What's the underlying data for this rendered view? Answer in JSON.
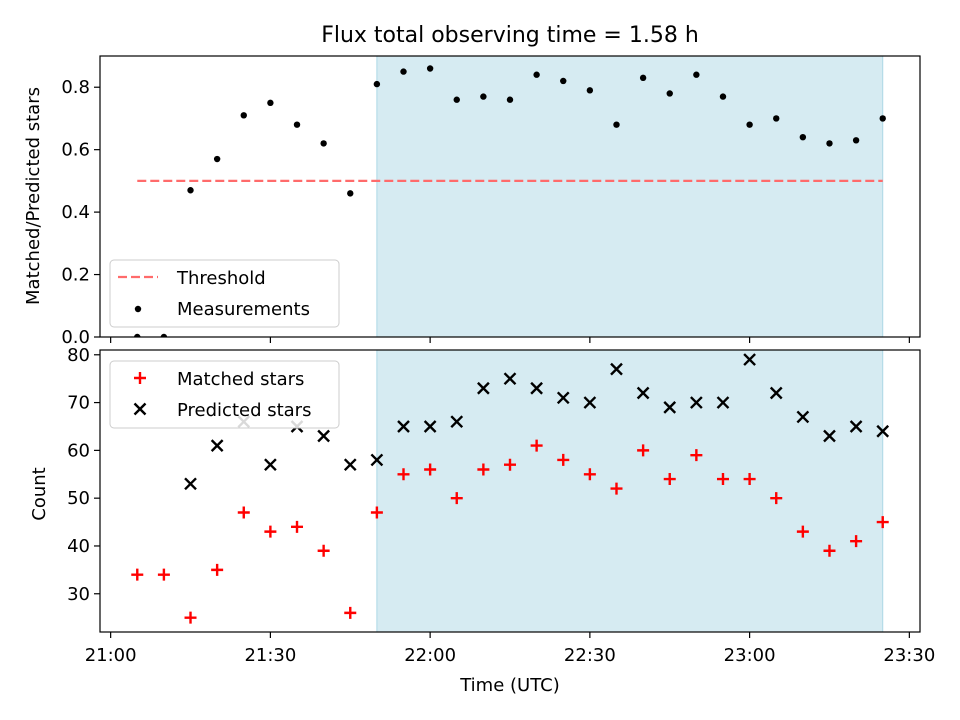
{
  "title": "Flux total observing time = 1.58 h",
  "colors": {
    "shade": "#add8e6",
    "threshold": "#ff6b6b",
    "matched": "#ff0000",
    "predicted": "#000000",
    "measurement": "#000000"
  },
  "chart_data": [
    {
      "type": "scatter",
      "ylabel": "Matched/Predicted stars",
      "ylim": [
        0,
        0.9
      ],
      "yticks": [
        "0.0",
        "0.2",
        "0.4",
        "0.6",
        "0.8"
      ],
      "xlim": [
        "21:00",
        "23:30"
      ],
      "shaded_interval": [
        "21:50",
        "23:25"
      ],
      "legend": {
        "placement": "lower-left",
        "entries": [
          "Threshold",
          "Measurements"
        ]
      },
      "threshold": {
        "name": "Threshold",
        "value": 0.5,
        "x": [
          "21:05",
          "23:25"
        ],
        "style": "dashed"
      },
      "series": [
        {
          "name": "Measurements",
          "x": [
            "21:05",
            "21:10",
            "21:15",
            "21:20",
            "21:25",
            "21:30",
            "21:35",
            "21:40",
            "21:45",
            "21:50",
            "21:55",
            "22:00",
            "22:05",
            "22:10",
            "22:15",
            "22:20",
            "22:25",
            "22:30",
            "22:35",
            "22:40",
            "22:45",
            "22:50",
            "22:55",
            "23:00",
            "23:05",
            "23:10",
            "23:15",
            "23:20",
            "23:25"
          ],
          "y": [
            0.0,
            0.0,
            0.47,
            0.57,
            0.71,
            0.75,
            0.68,
            0.62,
            0.46,
            0.81,
            0.85,
            0.86,
            0.76,
            0.77,
            0.76,
            0.84,
            0.82,
            0.79,
            0.68,
            0.83,
            0.78,
            0.84,
            0.77,
            0.68,
            0.7,
            0.64,
            0.62,
            0.63,
            0.7
          ]
        }
      ]
    },
    {
      "type": "scatter",
      "ylabel": "Count",
      "xlabel": "Time (UTC)",
      "ylim": [
        22,
        81
      ],
      "yticks": [
        "30",
        "40",
        "50",
        "60",
        "70",
        "80"
      ],
      "xticks": [
        "21:00",
        "21:30",
        "22:00",
        "22:30",
        "23:00",
        "23:30"
      ],
      "xlim": [
        "21:00",
        "23:30"
      ],
      "shaded_interval": [
        "21:50",
        "23:25"
      ],
      "legend": {
        "placement": "upper-left",
        "entries": [
          "Matched stars",
          "Predicted stars"
        ]
      },
      "series": [
        {
          "name": "Matched stars",
          "marker": "plus",
          "x": [
            "21:05",
            "21:10",
            "21:15",
            "21:20",
            "21:25",
            "21:30",
            "21:35",
            "21:40",
            "21:45",
            "21:50",
            "21:55",
            "22:00",
            "22:05",
            "22:10",
            "22:15",
            "22:20",
            "22:25",
            "22:30",
            "22:35",
            "22:40",
            "22:45",
            "22:50",
            "22:55",
            "23:00",
            "23:05",
            "23:10",
            "23:15",
            "23:20",
            "23:25"
          ],
          "y": [
            34,
            34,
            25,
            35,
            47,
            43,
            44,
            39,
            26,
            47,
            55,
            56,
            50,
            56,
            57,
            61,
            58,
            55,
            52,
            60,
            54,
            59,
            54,
            54,
            50,
            43,
            39,
            41,
            45
          ]
        },
        {
          "name": "Predicted stars",
          "marker": "x",
          "x": [
            "21:15",
            "21:20",
            "21:25",
            "21:30",
            "21:35",
            "21:40",
            "21:45",
            "21:50",
            "21:55",
            "22:00",
            "22:05",
            "22:10",
            "22:15",
            "22:20",
            "22:25",
            "22:30",
            "22:35",
            "22:40",
            "22:45",
            "22:50",
            "22:55",
            "23:00",
            "23:05",
            "23:10",
            "23:15",
            "23:20",
            "23:25"
          ],
          "y": [
            53,
            61,
            66,
            57,
            65,
            63,
            57,
            58,
            65,
            65,
            66,
            73,
            75,
            73,
            71,
            70,
            77,
            72,
            69,
            70,
            70,
            79,
            72,
            67,
            63,
            65,
            64
          ]
        }
      ]
    }
  ]
}
